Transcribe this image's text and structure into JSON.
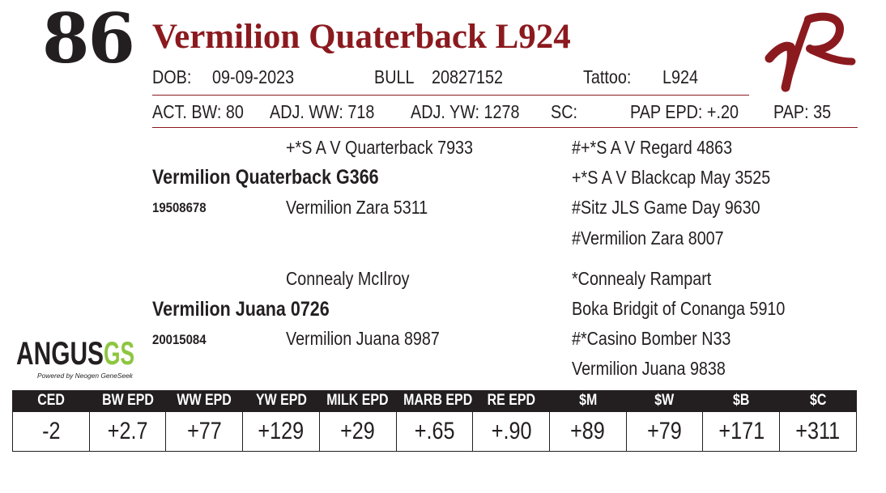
{
  "lot_number": "86",
  "animal_name": "Vermilion Quaterback L924",
  "info": {
    "dob_label": "DOB:",
    "dob_value": "09-09-2023",
    "sex_label": "BULL",
    "registration": "20827152",
    "tattoo_label": "Tattoo:",
    "tattoo_value": "L924"
  },
  "performance": {
    "act_bw": "ACT. BW: 80",
    "adj_ww": "ADJ. WW: 718",
    "adj_yw": "ADJ. YW: 1278",
    "sc": "SC:",
    "pap_epd": "PAP EPD: +.20",
    "pap": "PAP: 35"
  },
  "pedigree": {
    "sire": "Vermilion Quaterback G366",
    "sire_reg": "19508678",
    "sire_sire": "+*S A V Quarterback 7933",
    "sire_dam": "Vermilion Zara 5311",
    "sire_sire_sire": "#+*S A V Regard 4863",
    "sire_sire_dam": "+*S A V Blackcap May 3525",
    "sire_dam_sire": "#Sitz JLS Game Day 9630",
    "sire_dam_dam": "#Vermilion Zara 8007",
    "dam": "Vermilion Juana 0726",
    "dam_reg": "20015084",
    "dam_sire": "Connealy McIlroy",
    "dam_dam": "Vermilion Juana 8987",
    "dam_sire_sire": "*Connealy Rampart",
    "dam_sire_dam": "Boka Bridgit of Conanga 5910",
    "dam_dam_sire": "#*Casino Bomber N33",
    "dam_dam_dam": "Vermilion Juana 9838"
  },
  "logos": {
    "ranch_logo_text": "VR",
    "angus_logo_text": "ANGUS",
    "angus_logo_suffix": "GS",
    "angus_logo_tagline": "Powered by Neogen GeneSeek"
  },
  "epds": {
    "headers": [
      "CED",
      "BW EPD",
      "WW EPD",
      "YW EPD",
      "MILK EPD",
      "MARB EPD",
      "RE EPD",
      "$M",
      "$W",
      "$B",
      "$C"
    ],
    "values": [
      "-2",
      "+2.7",
      "+77",
      "+129",
      "+29",
      "+.65",
      "+.90",
      "+89",
      "+79",
      "+171",
      "+311"
    ]
  },
  "colors": {
    "title_red": "#8b1a1f",
    "text_dark": "#231f20",
    "angus_green": "#8dc63f"
  }
}
